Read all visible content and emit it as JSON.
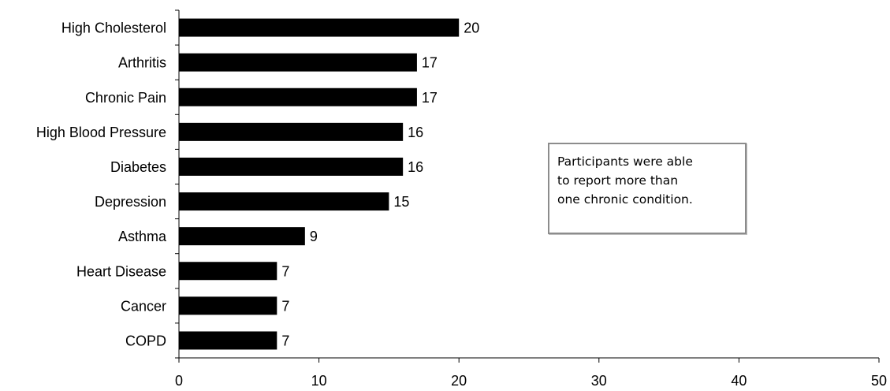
{
  "chart_data": {
    "type": "bar",
    "orientation": "horizontal",
    "categories": [
      "High Cholesterol",
      "Arthritis",
      "Chronic Pain",
      "High Blood Pressure",
      "Diabetes",
      "Depression",
      "Asthma",
      "Heart Disease",
      "Cancer",
      "COPD"
    ],
    "values": [
      20,
      17,
      17,
      16,
      16,
      15,
      9,
      7,
      7,
      7
    ],
    "data_labels": [
      "20",
      "17",
      "17",
      "16",
      "16",
      "15",
      "9",
      "7",
      "7",
      "7"
    ],
    "xlim": [
      0,
      50
    ],
    "xticks": [
      0,
      10,
      20,
      30,
      40,
      50
    ],
    "xtick_labels": [
      "0",
      "10",
      "20",
      "30",
      "40",
      "50"
    ],
    "bar_color": "#000000",
    "grid": false,
    "legend": "none",
    "annotation": "Participants were able\nto report more than\none chronic condition."
  }
}
